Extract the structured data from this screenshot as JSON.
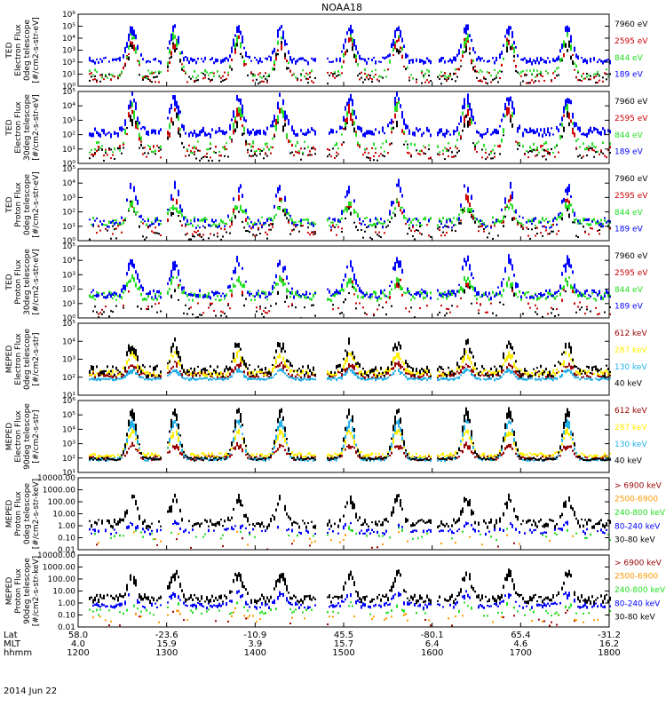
{
  "title": "NOAA18",
  "date_label": "2014 Jun 22",
  "colors": {
    "black": "#000000",
    "red": "#cc0000",
    "green": "#22dd22",
    "blue": "#0000ff",
    "yellow": "#ffee00",
    "cyan": "#22b0e8",
    "darkred": "#990000",
    "orange": "#ff9900"
  },
  "x_axis": {
    "row_labels": [
      "Lat",
      "MLT",
      "hhmm"
    ],
    "ticks": [
      {
        "lat": "58.0",
        "mlt": "4.0",
        "hhmm": "1200"
      },
      {
        "lat": "-23.6",
        "mlt": "15.9",
        "hhmm": "1300"
      },
      {
        "lat": "-10.9",
        "mlt": "3.9",
        "hhmm": "1400"
      },
      {
        "lat": "45.5",
        "mlt": "15.7",
        "hhmm": "1500"
      },
      {
        "lat": "-80.1",
        "mlt": "6.4",
        "hhmm": "1600"
      },
      {
        "lat": "65.4",
        "mlt": "4.6",
        "hhmm": "1700"
      },
      {
        "lat": "-31.2",
        "mlt": "16.2",
        "hhmm": "1800"
      }
    ]
  },
  "chart_data": [
    {
      "type": "scatter",
      "ylabel": [
        "TED",
        "Electron Flux",
        "0deg telescope",
        "[#/cm2-s-str-eV]"
      ],
      "yscale": "log",
      "ylim": [
        1,
        1000000
      ],
      "yticks": [
        {
          "v": 1,
          "t": "10⁰"
        },
        {
          "v": 10,
          "t": "10¹"
        },
        {
          "v": 100,
          "t": "10²"
        },
        {
          "v": 1000,
          "t": "10³"
        },
        {
          "v": 10000,
          "t": "10⁴"
        },
        {
          "v": 100000,
          "t": "10⁵"
        },
        {
          "v": 1000000,
          "t": "10⁶"
        }
      ],
      "series": [
        {
          "name": "7960 eV",
          "color": "black",
          "base": 5,
          "peak": 3500,
          "noise": 0.45,
          "gap": 0.35
        },
        {
          "name": "2595 eV",
          "color": "red",
          "base": 6,
          "peak": 9000,
          "noise": 0.45,
          "gap": 0.3
        },
        {
          "name": "844 eV",
          "color": "green",
          "base": 12,
          "peak": 30000,
          "noise": 0.4,
          "gap": 0.4
        },
        {
          "name": "189 eV",
          "color": "blue",
          "base": 180,
          "peak": 120000,
          "noise": 0.2,
          "gap": 0.12
        }
      ]
    },
    {
      "type": "scatter",
      "ylabel": [
        "TED",
        "Electron Flux",
        "30deg telescope",
        "[#/cm2-s-str-eV]"
      ],
      "yscale": "log",
      "ylim": [
        1,
        100000
      ],
      "yticks": [
        {
          "v": 1,
          "t": "10⁰"
        },
        {
          "v": 10,
          "t": "10¹"
        },
        {
          "v": 100,
          "t": "10²"
        },
        {
          "v": 1000,
          "t": "10³"
        },
        {
          "v": 10000,
          "t": "10⁴"
        },
        {
          "v": 100000,
          "t": "10⁵"
        }
      ],
      "series": [
        {
          "name": "7960 eV",
          "color": "black",
          "base": 5,
          "peak": 2500,
          "noise": 0.45,
          "gap": 0.35
        },
        {
          "name": "2595 eV",
          "color": "red",
          "base": 7,
          "peak": 8000,
          "noise": 0.45,
          "gap": 0.3
        },
        {
          "name": "844 eV",
          "color": "green",
          "base": 15,
          "peak": 20000,
          "noise": 0.4,
          "gap": 0.4
        },
        {
          "name": "189 eV",
          "color": "blue",
          "base": 200,
          "peak": 60000,
          "noise": 0.25,
          "gap": 0.1
        }
      ]
    },
    {
      "type": "scatter",
      "ylabel": [
        "TED",
        "Proton Flux",
        "0deg telescope",
        "[#/cm2-s-str-eV]"
      ],
      "yscale": "log",
      "ylim": [
        1,
        100000
      ],
      "yticks": [
        {
          "v": 1,
          "t": "10⁰"
        },
        {
          "v": 10,
          "t": "10¹"
        },
        {
          "v": 100,
          "t": "10²"
        },
        {
          "v": 1000,
          "t": "10³"
        },
        {
          "v": 10000,
          "t": "10⁴"
        },
        {
          "v": 100000,
          "t": "10⁵"
        }
      ],
      "series": [
        {
          "name": "7960 eV",
          "color": "black",
          "base": 4,
          "peak": 300,
          "noise": 0.5,
          "gap": 0.4
        },
        {
          "name": "2595 eV",
          "color": "red",
          "base": 6,
          "peak": 800,
          "noise": 0.4,
          "gap": 0.5
        },
        {
          "name": "844 eV",
          "color": "green",
          "base": 25,
          "peak": 400,
          "noise": 0.3,
          "gap": 0.1
        },
        {
          "name": "189 eV",
          "color": "blue",
          "base": 20,
          "peak": 12000,
          "noise": 0.35,
          "gap": 0.35
        }
      ]
    },
    {
      "type": "scatter",
      "ylabel": [
        "TED",
        "Proton Flux",
        "30deg telescope",
        "[#/cm2-s-str-eV]"
      ],
      "yscale": "log",
      "ylim": [
        1,
        100000
      ],
      "yticks": [
        {
          "v": 1,
          "t": "10⁰"
        },
        {
          "v": 10,
          "t": "10¹"
        },
        {
          "v": 100,
          "t": "10²"
        },
        {
          "v": 1000,
          "t": "10³"
        },
        {
          "v": 10000,
          "t": "10⁴"
        },
        {
          "v": 100000,
          "t": "10⁵"
        }
      ],
      "series": [
        {
          "name": "7960 eV",
          "color": "black",
          "base": 3,
          "peak": 200,
          "noise": 0.5,
          "gap": 0.6
        },
        {
          "name": "2595 eV",
          "color": "red",
          "base": 5,
          "peak": 500,
          "noise": 0.4,
          "gap": 0.7
        },
        {
          "name": "844 eV",
          "color": "green",
          "base": 40,
          "peak": 600,
          "noise": 0.3,
          "gap": 0.1
        },
        {
          "name": "189 eV",
          "color": "blue",
          "base": 60,
          "peak": 15000,
          "noise": 0.3,
          "gap": 0.15
        }
      ]
    },
    {
      "type": "scatter",
      "ylabel": [
        "MEPED",
        "Electron Flux",
        "0deg telescope",
        "[#/cm2-s-str]"
      ],
      "yscale": "log",
      "ylim": [
        10,
        100000
      ],
      "yticks": [
        {
          "v": 10,
          "t": "10¹"
        },
        {
          "v": 100,
          "t": "10²"
        },
        {
          "v": 1000,
          "t": "10³"
        },
        {
          "v": 10000,
          "t": "10⁴"
        },
        {
          "v": 100000,
          "t": "10⁵"
        }
      ],
      "series": [
        {
          "name": "612 keV",
          "color": "darkred",
          "base": 150,
          "peak": 600,
          "noise": 0.15,
          "gap": 0.05
        },
        {
          "name": "287 keV",
          "color": "yellow",
          "base": 200,
          "peak": 2500,
          "noise": 0.15,
          "gap": 0.05
        },
        {
          "name": "130 keV",
          "color": "cyan",
          "base": 90,
          "peak": 300,
          "noise": 0.05,
          "gap": 0.02
        },
        {
          "name": "40 keV",
          "color": "black",
          "base": 250,
          "peak": 9000,
          "noise": 0.3,
          "gap": 0.05
        }
      ]
    },
    {
      "type": "scatter",
      "ylabel": [
        "MEPED",
        "Electron Flux",
        "90deg telescope",
        "[#/cm2-s-str]"
      ],
      "yscale": "log",
      "ylim": [
        10,
        1000000
      ],
      "yticks": [
        {
          "v": 10,
          "t": "10¹"
        },
        {
          "v": 100,
          "t": "10²"
        },
        {
          "v": 1000,
          "t": "10³"
        },
        {
          "v": 10000,
          "t": "10⁴"
        },
        {
          "v": 100000,
          "t": "10⁵"
        },
        {
          "v": 1000000,
          "t": "10⁶"
        }
      ],
      "series": [
        {
          "name": "612 keV",
          "color": "darkred",
          "base": 120,
          "peak": 1000,
          "noise": 0.15,
          "gap": 0.05
        },
        {
          "name": "287 keV",
          "color": "yellow",
          "base": 180,
          "peak": 10000,
          "noise": 0.15,
          "gap": 0.05
        },
        {
          "name": "130 keV",
          "color": "cyan",
          "base": 90,
          "peak": 50000,
          "noise": 0.1,
          "gap": 0.05
        },
        {
          "name": "40 keV",
          "color": "black",
          "base": 100,
          "peak": 300000,
          "noise": 0.1,
          "gap": 0.05
        }
      ]
    },
    {
      "type": "scatter",
      "ylabel": [
        "MEPED",
        "Proton Flux",
        "0deg telescope",
        "[#/cm2-s-str-keV]"
      ],
      "yscale": "log",
      "ylim": [
        0.01,
        10000
      ],
      "yticks": [
        {
          "v": 0.01,
          "t": "0.01"
        },
        {
          "v": 0.1,
          "t": "0.10"
        },
        {
          "v": 1,
          "t": "1.00"
        },
        {
          "v": 10,
          "t": "10.00"
        },
        {
          "v": 100,
          "t": "100.00"
        },
        {
          "v": 1000,
          "t": "1000.00"
        },
        {
          "v": 10000,
          "t": "10000.00"
        }
      ],
      "series": [
        {
          "name": "> 6900 keV",
          "color": "darkred",
          "base": 0.02,
          "peak": 0.1,
          "noise": 0.3,
          "gap": 0.9
        },
        {
          "name": "2500-6900",
          "color": "orange",
          "base": 0.05,
          "peak": 0.2,
          "noise": 0.3,
          "gap": 0.9
        },
        {
          "name": "240-800 keV",
          "color": "green",
          "base": 0.15,
          "peak": 0.5,
          "noise": 0.3,
          "gap": 0.8
        },
        {
          "name": "80-240 keV",
          "color": "blue",
          "base": 0.4,
          "peak": 2,
          "noise": 0.2,
          "gap": 0.5
        },
        {
          "name": "30-80 keV",
          "color": "black",
          "base": 2,
          "peak": 300,
          "noise": 0.3,
          "gap": 0.15
        }
      ]
    },
    {
      "type": "scatter",
      "ylabel": [
        "MEPED",
        "Proton Flux",
        "90deg telescope",
        "[#/cm2-s-str-keV]"
      ],
      "yscale": "log",
      "ylim": [
        0.01,
        10000
      ],
      "yticks": [
        {
          "v": 0.01,
          "t": "0.01"
        },
        {
          "v": 0.1,
          "t": "0.10"
        },
        {
          "v": 1,
          "t": "1.00"
        },
        {
          "v": 10,
          "t": "10.00"
        },
        {
          "v": 100,
          "t": "100.00"
        },
        {
          "v": 1000,
          "t": "1000.00"
        },
        {
          "v": 10000,
          "t": "10000.00"
        }
      ],
      "series": [
        {
          "name": "> 6900 keV",
          "color": "darkred",
          "base": 0.03,
          "peak": 0.2,
          "noise": 0.3,
          "gap": 0.9
        },
        {
          "name": "2500-6900",
          "color": "orange",
          "base": 0.05,
          "peak": 0.4,
          "noise": 0.3,
          "gap": 0.85
        },
        {
          "name": "240-800 keV",
          "color": "green",
          "base": 0.2,
          "peak": 1,
          "noise": 0.3,
          "gap": 0.7
        },
        {
          "name": "80-240 keV",
          "color": "blue",
          "base": 0.8,
          "peak": 8,
          "noise": 0.2,
          "gap": 0.3
        },
        {
          "name": "30-80 keV",
          "color": "black",
          "base": 3,
          "peak": 500,
          "noise": 0.3,
          "gap": 0.1
        }
      ]
    }
  ]
}
